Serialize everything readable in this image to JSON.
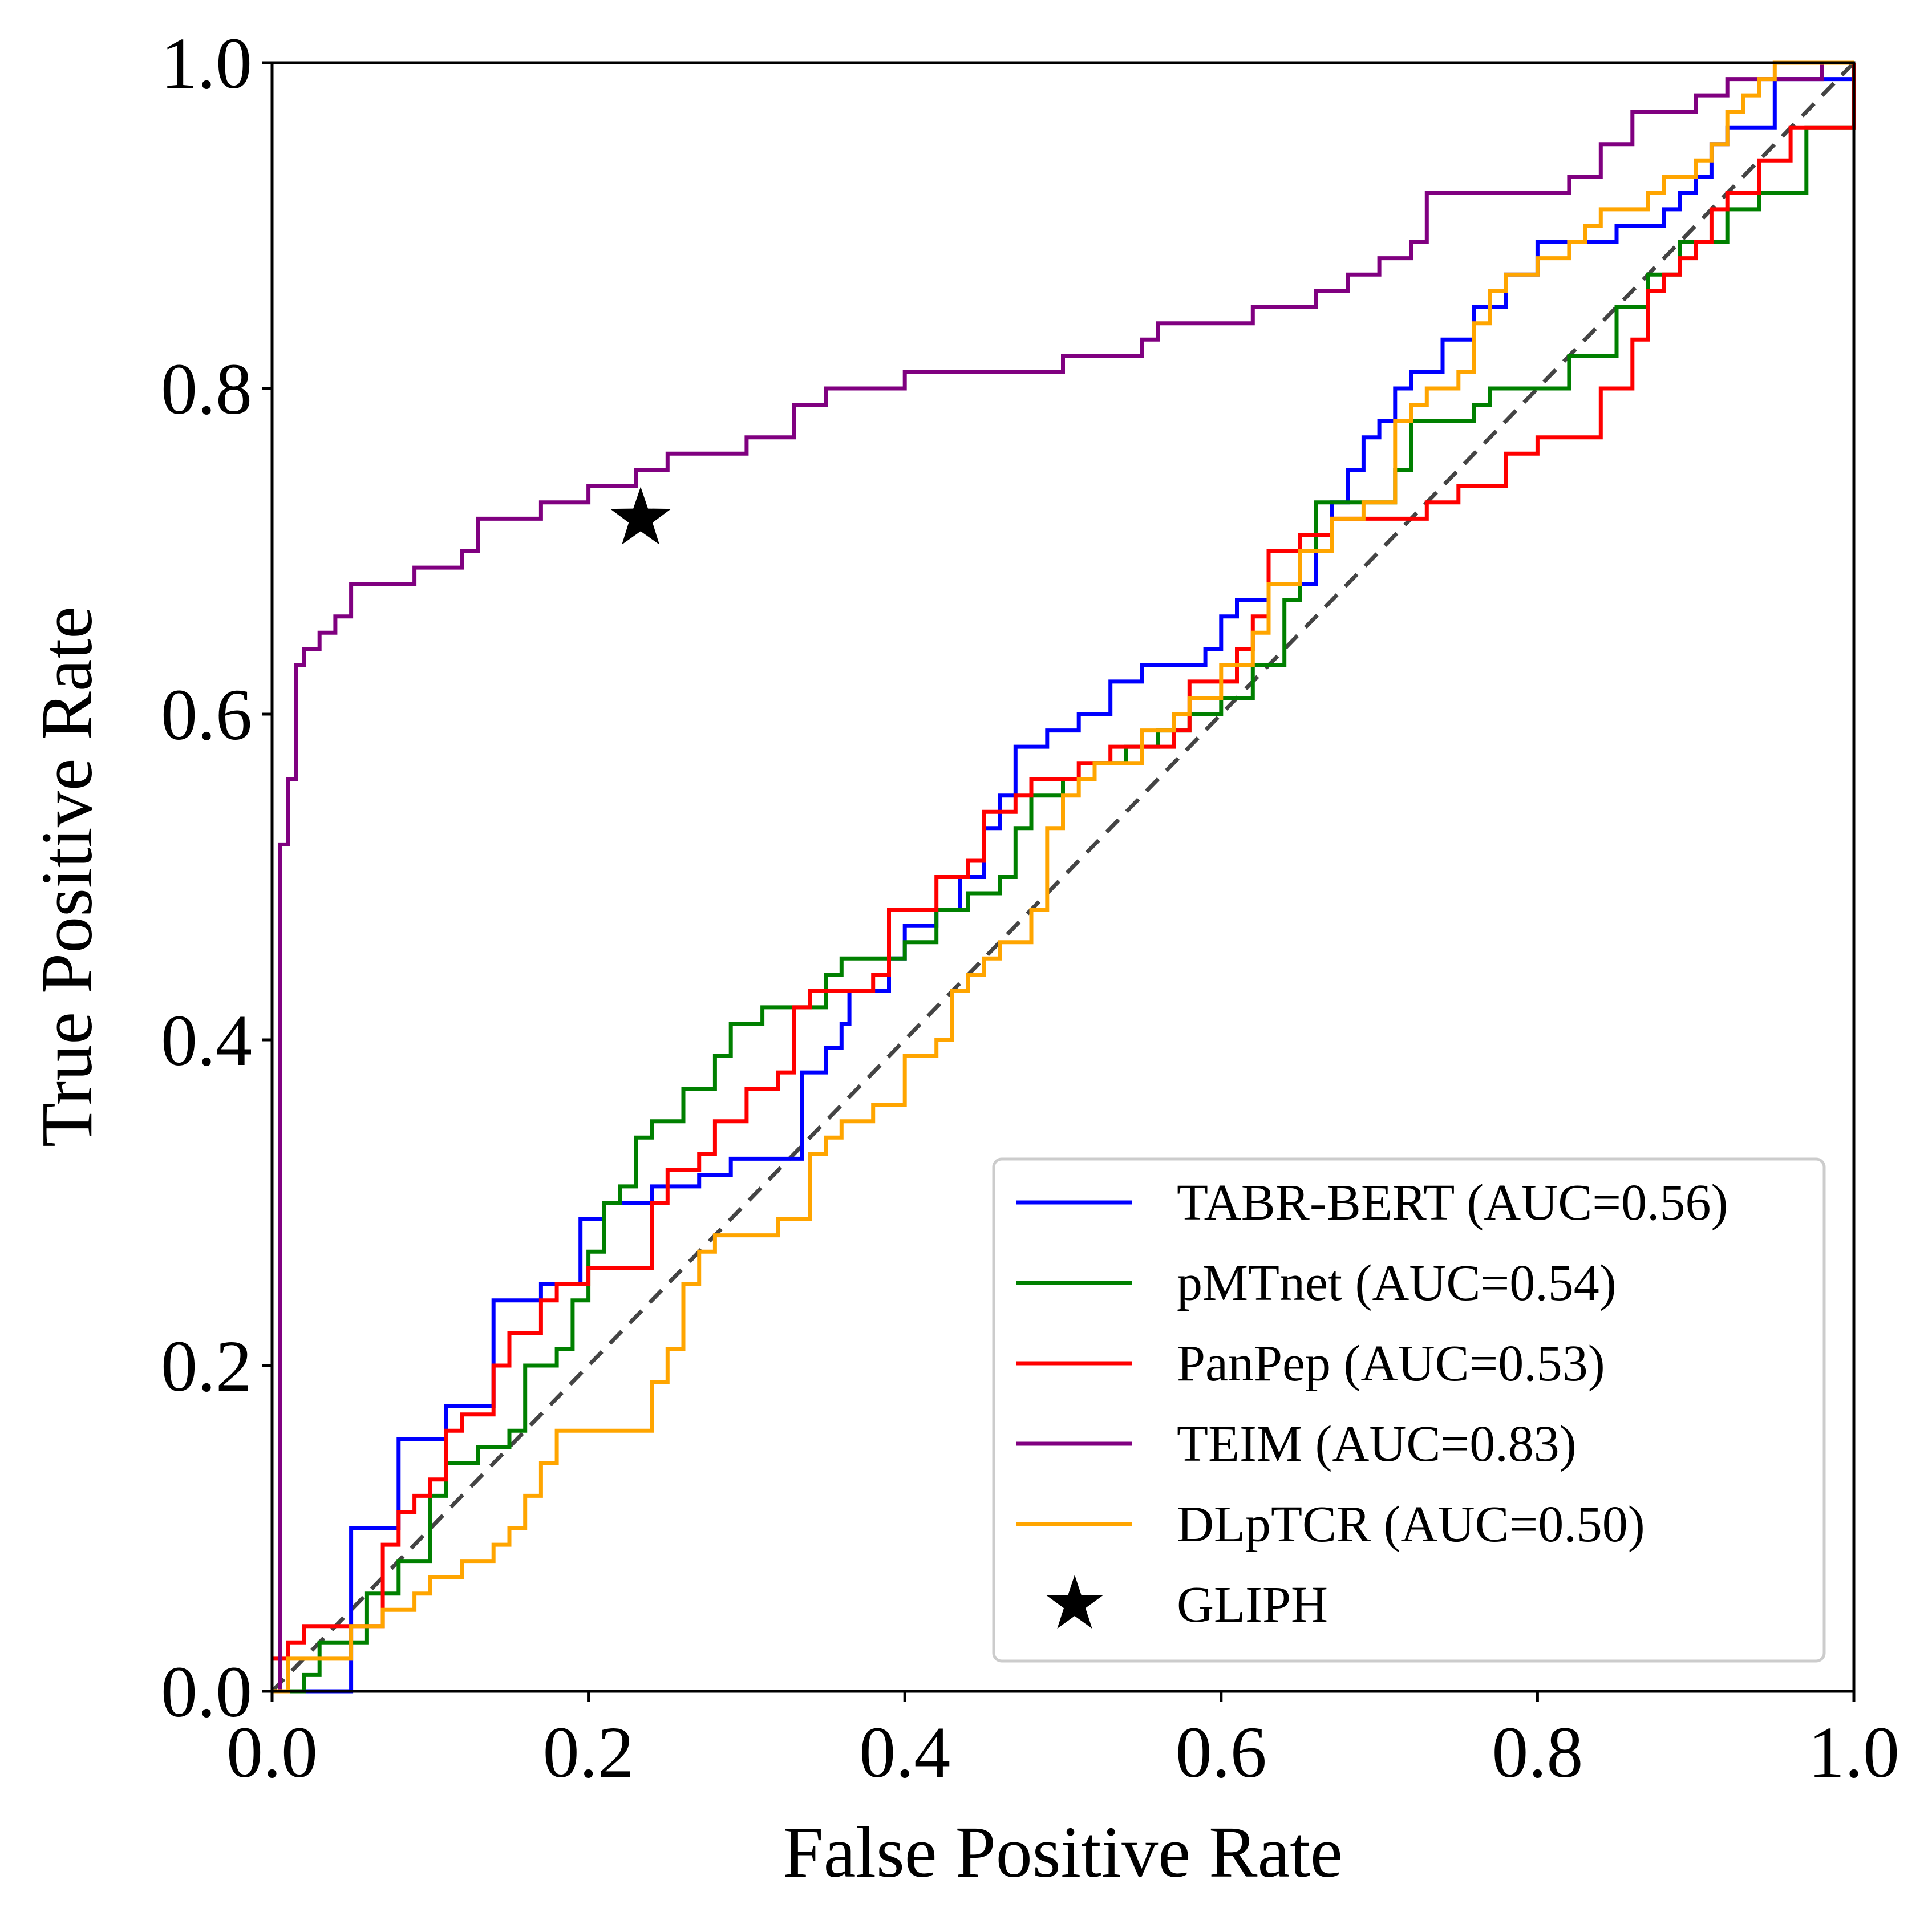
{
  "chart_data": {
    "type": "line",
    "xlabel": "False Positive Rate",
    "ylabel": "True Positive Rate",
    "xlim": [
      0.0,
      1.0
    ],
    "ylim": [
      0.0,
      1.0
    ],
    "xticks": [
      "0.0",
      "0.2",
      "0.4",
      "0.6",
      "0.8",
      "1.0"
    ],
    "yticks": [
      "0.0",
      "0.2",
      "0.4",
      "0.6",
      "0.8",
      "1.0"
    ],
    "grid": false,
    "legend_position": "lower-right",
    "reference_line": {
      "x": [
        0,
        1
      ],
      "y": [
        0,
        1
      ],
      "style": "dashed",
      "color": "#444444"
    },
    "series": [
      {
        "name": "TABR-BERT (AUC=0.56)",
        "color": "#0000ff",
        "x": [
          0.0,
          0.05,
          0.08,
          0.11,
          0.14,
          0.17,
          0.195,
          0.21,
          0.24,
          0.27,
          0.29,
          0.33,
          0.335,
          0.35,
          0.36,
          0.365,
          0.39,
          0.4,
          0.42,
          0.435,
          0.45,
          0.46,
          0.47,
          0.49,
          0.51,
          0.53,
          0.55,
          0.59,
          0.6,
          0.61,
          0.63,
          0.66,
          0.67,
          0.68,
          0.69,
          0.7,
          0.71,
          0.72,
          0.74,
          0.76,
          0.78,
          0.8,
          0.82,
          0.85,
          0.88,
          0.89,
          0.9,
          0.91,
          0.92,
          0.95,
          1.0
        ],
        "y": [
          0.0,
          0.1,
          0.155,
          0.175,
          0.24,
          0.25,
          0.29,
          0.3,
          0.31,
          0.317,
          0.327,
          0.327,
          0.38,
          0.395,
          0.41,
          0.43,
          0.45,
          0.47,
          0.48,
          0.5,
          0.53,
          0.55,
          0.58,
          0.59,
          0.6,
          0.62,
          0.63,
          0.64,
          0.66,
          0.67,
          0.68,
          0.71,
          0.73,
          0.75,
          0.77,
          0.78,
          0.8,
          0.81,
          0.83,
          0.85,
          0.87,
          0.89,
          0.89,
          0.9,
          0.91,
          0.92,
          0.93,
          0.95,
          0.96,
          0.99,
          1.0
        ]
      },
      {
        "name": "pMTnet (AUC=0.54)",
        "color": "#008000",
        "x": [
          0.0,
          0.02,
          0.03,
          0.06,
          0.08,
          0.1,
          0.11,
          0.13,
          0.15,
          0.16,
          0.18,
          0.19,
          0.2,
          0.21,
          0.22,
          0.23,
          0.24,
          0.26,
          0.28,
          0.29,
          0.31,
          0.33,
          0.35,
          0.36,
          0.38,
          0.4,
          0.42,
          0.44,
          0.46,
          0.47,
          0.48,
          0.5,
          0.52,
          0.54,
          0.56,
          0.58,
          0.6,
          0.62,
          0.64,
          0.65,
          0.66,
          0.7,
          0.71,
          0.72,
          0.74,
          0.76,
          0.77,
          0.8,
          0.82,
          0.85,
          0.87,
          0.89,
          0.92,
          0.94,
          0.97,
          1.0
        ],
        "y": [
          0.0,
          0.01,
          0.03,
          0.06,
          0.08,
          0.12,
          0.14,
          0.15,
          0.16,
          0.2,
          0.21,
          0.24,
          0.27,
          0.3,
          0.31,
          0.34,
          0.35,
          0.37,
          0.39,
          0.41,
          0.42,
          0.42,
          0.44,
          0.45,
          0.45,
          0.46,
          0.48,
          0.49,
          0.5,
          0.53,
          0.55,
          0.56,
          0.57,
          0.58,
          0.59,
          0.6,
          0.61,
          0.63,
          0.67,
          0.7,
          0.73,
          0.73,
          0.75,
          0.78,
          0.78,
          0.79,
          0.8,
          0.8,
          0.82,
          0.85,
          0.87,
          0.89,
          0.91,
          0.92,
          0.96,
          0.98
        ]
      },
      {
        "name": "PanPep (AUC=0.53)",
        "color": "#ff0000",
        "x": [
          0.0,
          0.01,
          0.02,
          0.05,
          0.07,
          0.08,
          0.09,
          0.1,
          0.11,
          0.12,
          0.14,
          0.15,
          0.17,
          0.18,
          0.19,
          0.2,
          0.22,
          0.24,
          0.25,
          0.27,
          0.28,
          0.3,
          0.32,
          0.33,
          0.34,
          0.37,
          0.38,
          0.39,
          0.41,
          0.42,
          0.44,
          0.45,
          0.47,
          0.48,
          0.5,
          0.51,
          0.53,
          0.55,
          0.57,
          0.58,
          0.59,
          0.61,
          0.62,
          0.63,
          0.65,
          0.67,
          0.7,
          0.73,
          0.75,
          0.78,
          0.8,
          0.82,
          0.84,
          0.86,
          0.87,
          0.88,
          0.89,
          0.9,
          0.91,
          0.92,
          0.94,
          0.96,
          1.0
        ],
        "y": [
          0.02,
          0.03,
          0.04,
          0.04,
          0.09,
          0.11,
          0.12,
          0.13,
          0.16,
          0.17,
          0.2,
          0.22,
          0.24,
          0.25,
          0.25,
          0.26,
          0.26,
          0.3,
          0.32,
          0.33,
          0.35,
          0.37,
          0.38,
          0.42,
          0.43,
          0.43,
          0.44,
          0.48,
          0.48,
          0.5,
          0.51,
          0.54,
          0.55,
          0.56,
          0.56,
          0.57,
          0.58,
          0.58,
          0.59,
          0.62,
          0.62,
          0.64,
          0.66,
          0.7,
          0.71,
          0.72,
          0.72,
          0.73,
          0.74,
          0.76,
          0.77,
          0.77,
          0.8,
          0.83,
          0.86,
          0.87,
          0.88,
          0.89,
          0.91,
          0.92,
          0.94,
          0.96,
          1.0
        ]
      },
      {
        "name": "TEIM (AUC=0.83)",
        "color": "#800080",
        "x": [
          0.0,
          0.005,
          0.01,
          0.015,
          0.02,
          0.025,
          0.03,
          0.04,
          0.05,
          0.07,
          0.09,
          0.1,
          0.12,
          0.13,
          0.16,
          0.17,
          0.18,
          0.2,
          0.22,
          0.23,
          0.25,
          0.28,
          0.3,
          0.33,
          0.35,
          0.38,
          0.4,
          0.44,
          0.46,
          0.48,
          0.5,
          0.52,
          0.55,
          0.56,
          0.58,
          0.6,
          0.62,
          0.64,
          0.66,
          0.68,
          0.7,
          0.72,
          0.73,
          0.78,
          0.8,
          0.82,
          0.84,
          0.86,
          0.88,
          0.9,
          0.92,
          0.95,
          0.98,
          1.0
        ],
        "y": [
          0.0,
          0.52,
          0.56,
          0.63,
          0.64,
          0.64,
          0.65,
          0.66,
          0.68,
          0.68,
          0.69,
          0.69,
          0.7,
          0.72,
          0.72,
          0.73,
          0.73,
          0.74,
          0.74,
          0.75,
          0.76,
          0.76,
          0.77,
          0.79,
          0.8,
          0.8,
          0.81,
          0.81,
          0.81,
          0.81,
          0.82,
          0.82,
          0.83,
          0.84,
          0.84,
          0.84,
          0.85,
          0.85,
          0.86,
          0.87,
          0.88,
          0.89,
          0.92,
          0.92,
          0.92,
          0.93,
          0.95,
          0.97,
          0.97,
          0.98,
          0.99,
          0.99,
          1.0,
          1.0
        ]
      },
      {
        "name": "DLpTCR (AUC=0.50)",
        "color": "#ffa500",
        "x": [
          0.0,
          0.01,
          0.05,
          0.07,
          0.09,
          0.1,
          0.12,
          0.14,
          0.15,
          0.16,
          0.17,
          0.18,
          0.19,
          0.23,
          0.24,
          0.25,
          0.26,
          0.27,
          0.28,
          0.29,
          0.3,
          0.32,
          0.34,
          0.35,
          0.36,
          0.38,
          0.4,
          0.42,
          0.43,
          0.44,
          0.45,
          0.46,
          0.48,
          0.49,
          0.5,
          0.51,
          0.52,
          0.53,
          0.55,
          0.57,
          0.58,
          0.6,
          0.62,
          0.63,
          0.65,
          0.67,
          0.69,
          0.71,
          0.72,
          0.73,
          0.75,
          0.76,
          0.77,
          0.78,
          0.8,
          0.82,
          0.83,
          0.84,
          0.87,
          0.88,
          0.9,
          0.91,
          0.92,
          0.93,
          0.94,
          0.95,
          1.0
        ],
        "y": [
          0.0,
          0.02,
          0.04,
          0.05,
          0.06,
          0.07,
          0.08,
          0.09,
          0.1,
          0.12,
          0.14,
          0.16,
          0.16,
          0.16,
          0.19,
          0.21,
          0.25,
          0.27,
          0.28,
          0.28,
          0.28,
          0.29,
          0.33,
          0.34,
          0.35,
          0.36,
          0.39,
          0.4,
          0.43,
          0.44,
          0.45,
          0.46,
          0.48,
          0.53,
          0.55,
          0.56,
          0.57,
          0.57,
          0.59,
          0.6,
          0.61,
          0.63,
          0.65,
          0.68,
          0.7,
          0.72,
          0.73,
          0.78,
          0.79,
          0.8,
          0.81,
          0.84,
          0.86,
          0.87,
          0.88,
          0.89,
          0.9,
          0.91,
          0.92,
          0.93,
          0.94,
          0.95,
          0.97,
          0.98,
          0.99,
          1.0,
          1.0
        ]
      }
    ],
    "points": [
      {
        "name": "GLIPH",
        "x": 0.233,
        "y": 0.72,
        "marker": "star",
        "color": "#000000"
      }
    ]
  }
}
